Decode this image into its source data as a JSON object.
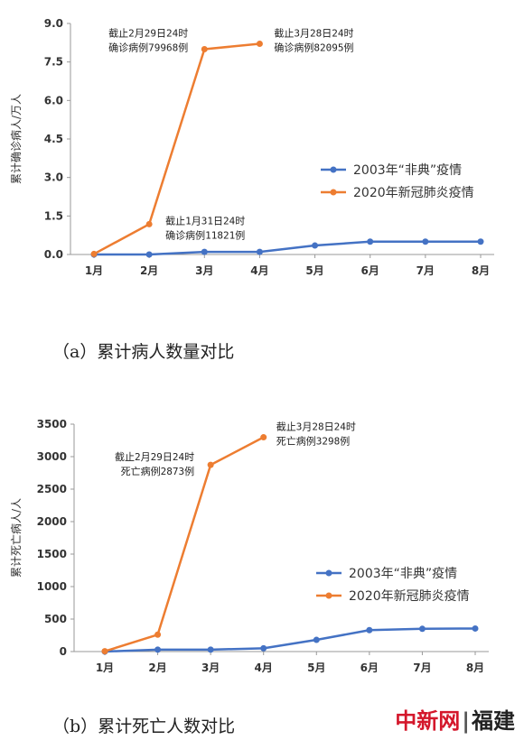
{
  "captions": {
    "a": "（a）累计病人数量对比",
    "b": "（b）累计死亡人数对比"
  },
  "watermark": {
    "brand": "中新网",
    "separator": "|",
    "region": "福建"
  },
  "colors": {
    "sars": "#4472c4",
    "covid": "#ed7d31",
    "axis": "#999999"
  },
  "chart_data": [
    {
      "type": "line",
      "categories": [
        "1月",
        "2月",
        "3月",
        "4月",
        "5月",
        "6月",
        "7月",
        "8月"
      ],
      "ylabel": "累计确诊病人/万人",
      "ylim": [
        0,
        9
      ],
      "yticks": [
        "0.0",
        "1.5",
        "3.0",
        "4.5",
        "6.0",
        "7.5",
        "9.0"
      ],
      "grid": false,
      "legend": "right",
      "series": [
        {
          "name": "2003年“非典”疫情",
          "color": "#4472c4",
          "values": [
            0.0,
            0.0,
            0.1,
            0.1,
            0.35,
            0.5,
            0.5,
            0.5
          ]
        },
        {
          "name": "2020年新冠肺炎疫情",
          "color": "#ed7d31",
          "values": [
            0.02,
            1.18,
            7.997,
            8.21,
            null,
            null,
            null,
            null
          ]
        }
      ],
      "annotations": [
        {
          "lines": [
            "截止2月29日24时",
            "确诊病例79968例"
          ],
          "anchor": {
            "category": "3月",
            "value": 7.997
          },
          "side": "left"
        },
        {
          "lines": [
            "截止3月28日24时",
            "确诊病例82095例"
          ],
          "anchor": {
            "category": "4月",
            "value": 8.21
          },
          "side": "right"
        },
        {
          "lines": [
            "截止1月31日24时",
            "确诊病例11821例"
          ],
          "anchor": {
            "category": "2月",
            "value": 1.18
          },
          "side": "right"
        }
      ]
    },
    {
      "type": "line",
      "categories": [
        "1月",
        "2月",
        "3月",
        "4月",
        "5月",
        "6月",
        "7月",
        "8月"
      ],
      "ylabel": "累计死亡病人/人",
      "ylim": [
        0,
        3500
      ],
      "yticks": [
        "0",
        "500",
        "1000",
        "1500",
        "2000",
        "2500",
        "3000",
        "3500"
      ],
      "grid": false,
      "legend": "right",
      "series": [
        {
          "name": "2003年“非典”疫情",
          "color": "#4472c4",
          "values": [
            0,
            30,
            30,
            50,
            180,
            330,
            350,
            355
          ]
        },
        {
          "name": "2020年新冠肺炎疫情",
          "color": "#ed7d31",
          "values": [
            5,
            260,
            2873,
            3298,
            null,
            null,
            null,
            null
          ]
        }
      ],
      "annotations": [
        {
          "lines": [
            "截止2月29日24时",
            "死亡病例2873例"
          ],
          "anchor": {
            "category": "3月",
            "value": 2873
          },
          "side": "left"
        },
        {
          "lines": [
            "截止3月28日24时",
            "死亡病例3298例"
          ],
          "anchor": {
            "category": "4月",
            "value": 3298
          },
          "side": "right"
        }
      ]
    }
  ]
}
